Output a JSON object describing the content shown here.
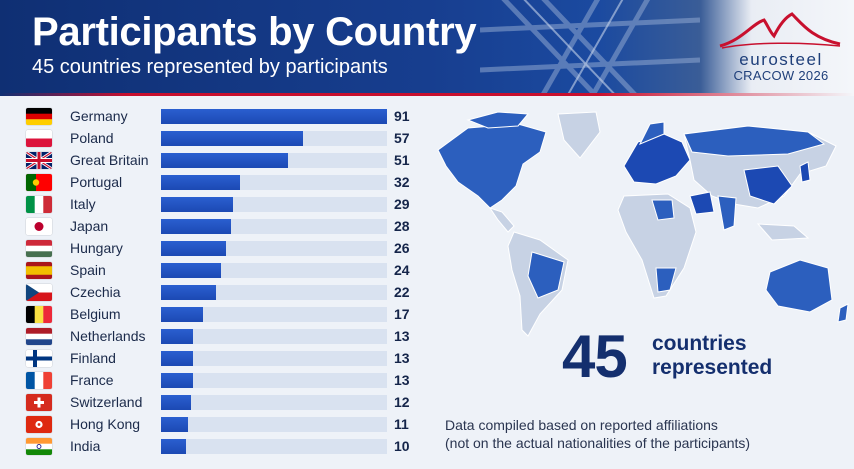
{
  "header": {
    "title": "Participants by Country",
    "subtitle": "45 countries represented by participants"
  },
  "logo": {
    "name": "eurosteel",
    "sub": "CRACOW 2026"
  },
  "colors": {
    "header_blue": "#173e8f",
    "bar_blue": "#1c49b3",
    "track": "#d9e2f0",
    "accent_red": "#c8102e",
    "text_dark": "#142f6e"
  },
  "highlight": {
    "number": "45",
    "label_line1": "countries",
    "label_line2": "represented"
  },
  "note": {
    "line1": "Data compiled based on reported affiliations",
    "line2": "(not on the actual nationalities of the participants)"
  },
  "chart_data": {
    "type": "bar",
    "orientation": "horizontal",
    "title": "Participants by Country",
    "subtitle": "45 countries represented by participants",
    "categories": [
      "Germany",
      "Poland",
      "Great Britain",
      "Portugal",
      "Italy",
      "Japan",
      "Hungary",
      "Spain",
      "Czechia",
      "Belgium",
      "Netherlands",
      "Finland",
      "France",
      "Switzerland",
      "Hong Kong",
      "India"
    ],
    "values": [
      91,
      57,
      51,
      32,
      29,
      28,
      26,
      24,
      22,
      17,
      13,
      13,
      13,
      12,
      11,
      10
    ],
    "xlim": [
      0,
      91
    ],
    "grid": false,
    "data_labels": true
  }
}
